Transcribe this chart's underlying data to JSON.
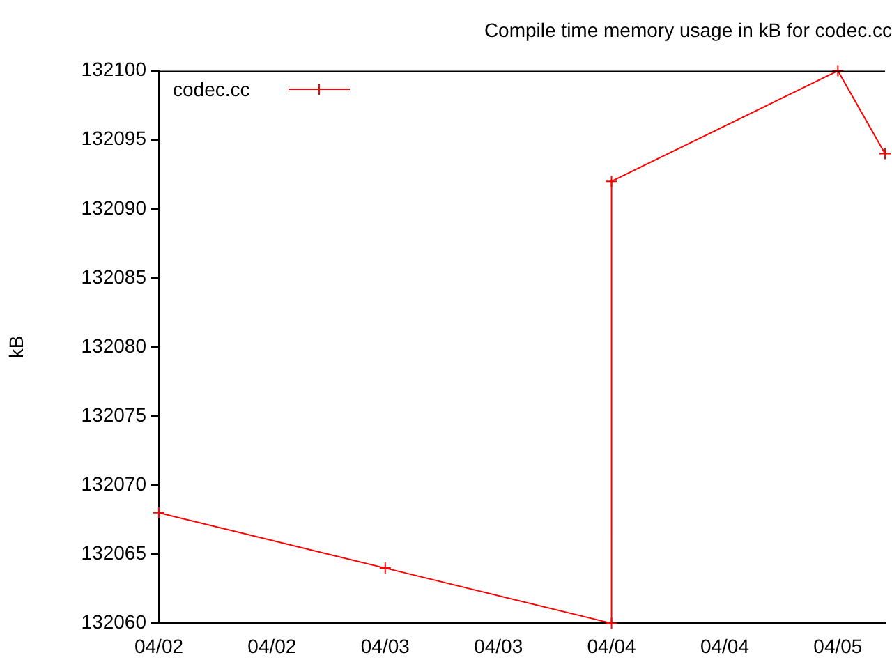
{
  "chart_data": {
    "type": "line",
    "title": "Compile time memory usage in kB for codec.cc",
    "ylabel": "kB",
    "x": [
      "--04-02T00:00",
      "--04-03T00:00",
      "--04-04T00:00",
      "--04-04T00:00",
      "--04-05T00:00",
      "--04-05T05:00"
    ],
    "series": [
      {
        "name": "codec.cc",
        "color": "#ff0000",
        "values": [
          132068,
          132064,
          132060,
          132092,
          132100,
          132094
        ]
      }
    ],
    "xlim": [
      "--04-02T00:00",
      "--04-05T05:00"
    ],
    "xticks": [
      {
        "value": "--04-02T00:00",
        "label": "04/02"
      },
      {
        "value": "--04-02T12:00",
        "label": "04/02"
      },
      {
        "value": "--04-03T00:00",
        "label": "04/03"
      },
      {
        "value": "--04-03T12:00",
        "label": "04/03"
      },
      {
        "value": "--04-04T00:00",
        "label": "04/04"
      },
      {
        "value": "--04-04T12:00",
        "label": "04/04"
      },
      {
        "value": "--04-05T00:00",
        "label": "04/05"
      }
    ],
    "ylim": [
      132060,
      132100
    ],
    "yticks": [
      132060,
      132065,
      132070,
      132075,
      132080,
      132085,
      132090,
      132095,
      132100
    ],
    "grid": false,
    "legend": "top left",
    "marker": "cross",
    "line_style": "solid"
  }
}
